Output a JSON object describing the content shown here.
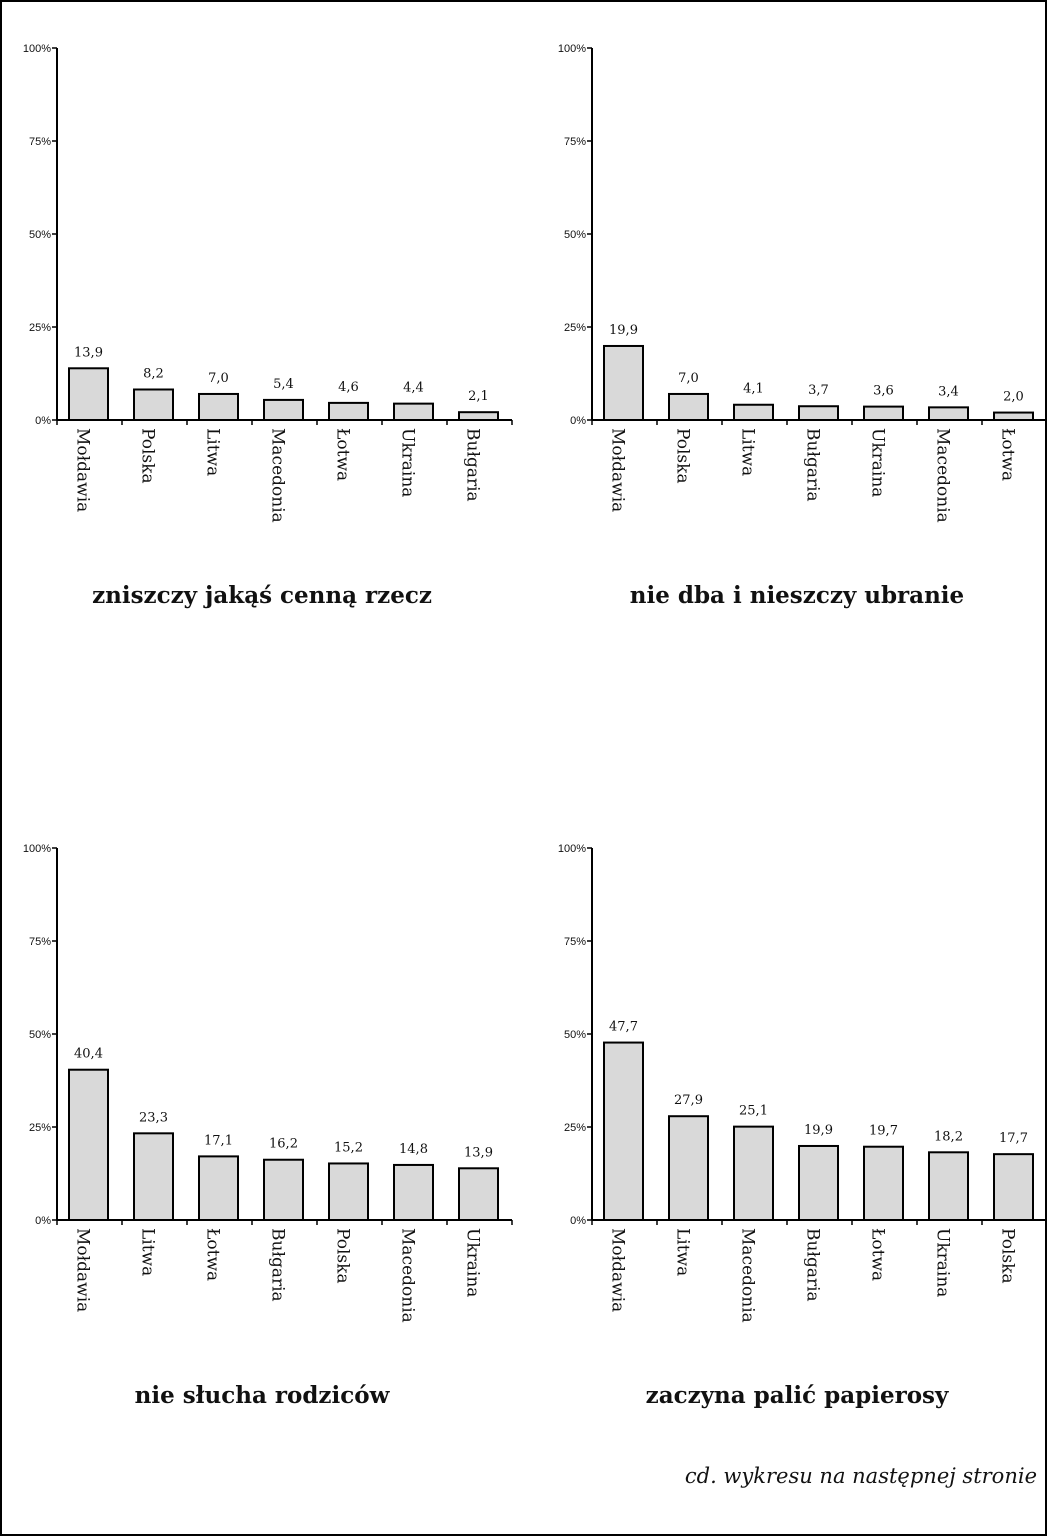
{
  "style": {
    "bar_fill": "#d9d9d9",
    "bar_stroke": "#000000",
    "axis_color": "#000000",
    "frame_color": "#000000"
  },
  "footnote": "cd. wykresu na następnej stronie",
  "chart_data": [
    {
      "type": "bar",
      "title": "zniszczy jakąś cenną rzecz",
      "categories": [
        "Mołdawia",
        "Polska",
        "Litwa",
        "Macedonia",
        "Łotwa",
        "Ukraina",
        "Bułgaria"
      ],
      "values": [
        13.9,
        8.2,
        7.0,
        5.4,
        4.6,
        4.4,
        2.1
      ],
      "value_labels": [
        "13,9",
        "8,2",
        "7,0",
        "5,4",
        "4,6",
        "4,4",
        "2,1"
      ],
      "yticks": [
        "0%",
        "25%",
        "50%",
        "75%",
        "100%"
      ],
      "ylim": [
        0,
        100
      ],
      "grid": false
    },
    {
      "type": "bar",
      "title": "nie dba i nieszczy ubranie",
      "categories": [
        "Mołdawia",
        "Polska",
        "Litwa",
        "Bułgaria",
        "Ukraina",
        "Macedonia",
        "Łotwa"
      ],
      "values": [
        19.9,
        7.0,
        4.1,
        3.7,
        3.6,
        3.4,
        2.0
      ],
      "value_labels": [
        "19,9",
        "7,0",
        "4,1",
        "3,7",
        "3,6",
        "3,4",
        "2,0"
      ],
      "yticks": [
        "0%",
        "25%",
        "50%",
        "75%",
        "100%"
      ],
      "ylim": [
        0,
        100
      ],
      "grid": false
    },
    {
      "type": "bar",
      "title": "nie słucha rodziców",
      "categories": [
        "Mołdawia",
        "Litwa",
        "Łotwa",
        "Bułgaria",
        "Polska",
        "Macedonia",
        "Ukraina"
      ],
      "values": [
        40.4,
        23.3,
        17.1,
        16.2,
        15.2,
        14.8,
        13.9
      ],
      "value_labels": [
        "40,4",
        "23,3",
        "17,1",
        "16,2",
        "15,2",
        "14,8",
        "13,9"
      ],
      "yticks": [
        "0%",
        "25%",
        "50%",
        "75%",
        "100%"
      ],
      "ylim": [
        0,
        100
      ],
      "grid": false
    },
    {
      "type": "bar",
      "title": "zaczyna palić papierosy",
      "categories": [
        "Mołdawia",
        "Litwa",
        "Macedonia",
        "Bułgaria",
        "Łotwa",
        "Ukraina",
        "Polska"
      ],
      "values": [
        47.7,
        27.9,
        25.1,
        19.9,
        19.7,
        18.2,
        17.7
      ],
      "value_labels": [
        "47,7",
        "27,9",
        "25,1",
        "19,9",
        "19,7",
        "18,2",
        "17,7"
      ],
      "yticks": [
        "0%",
        "25%",
        "50%",
        "75%",
        "100%"
      ],
      "ylim": [
        0,
        100
      ],
      "grid": false
    }
  ]
}
